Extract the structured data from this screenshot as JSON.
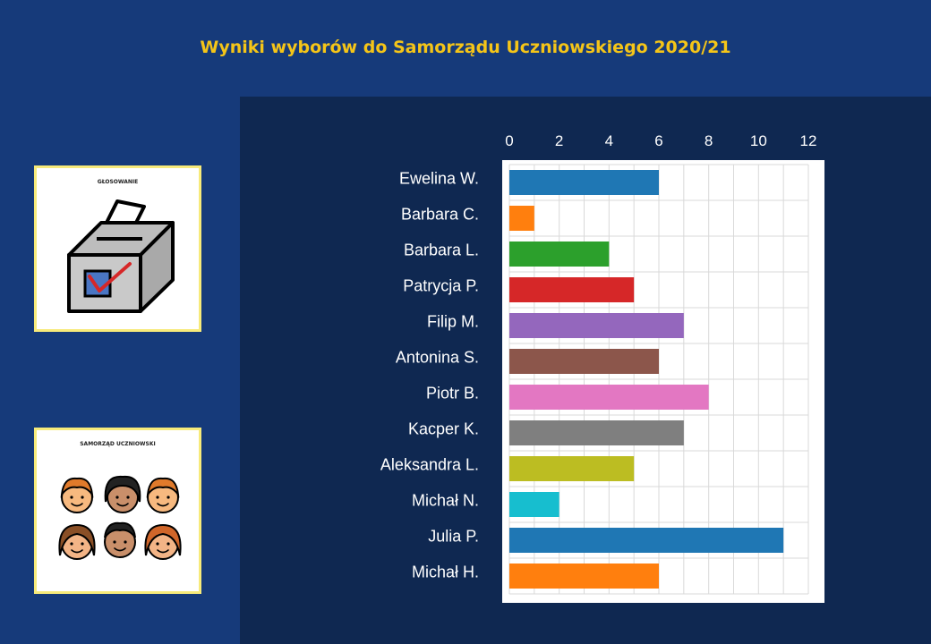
{
  "title": "Wyniki  wyborów do Samorządu Uczniowskiego 2020/21",
  "cards": {
    "voting_label": "GŁOSOWANIE",
    "council_label": "SAMORZĄD UCZNIOWSKI"
  },
  "chart_data": {
    "type": "bar",
    "orientation": "horizontal",
    "title": "Wyniki  wyborów do Samorządu Uczniowskiego 2020/21",
    "xlabel": "",
    "ylabel": "",
    "xlim": [
      0,
      12
    ],
    "xticks": [
      "0",
      "2",
      "4",
      "6",
      "8",
      "10",
      "12"
    ],
    "grid": true,
    "categories": [
      "Ewelina W.",
      "Barbara C.",
      "Barbara L.",
      "Patrycja P.",
      "Filip M.",
      "Antonina S.",
      "Piotr B.",
      "Kacper K.",
      "Aleksandra L.",
      "Michał N.",
      "Julia P.",
      "Michał H."
    ],
    "values": [
      6,
      1,
      4,
      5,
      7,
      6,
      8,
      7,
      5,
      2,
      11,
      6
    ],
    "colors": [
      "#1f77b4",
      "#ff7f0e",
      "#2ca02c",
      "#d62728",
      "#9467bd",
      "#8c564b",
      "#e377c2",
      "#7f7f7f",
      "#bcbd22",
      "#17becf",
      "#1f77b4",
      "#ff7f0e"
    ]
  }
}
